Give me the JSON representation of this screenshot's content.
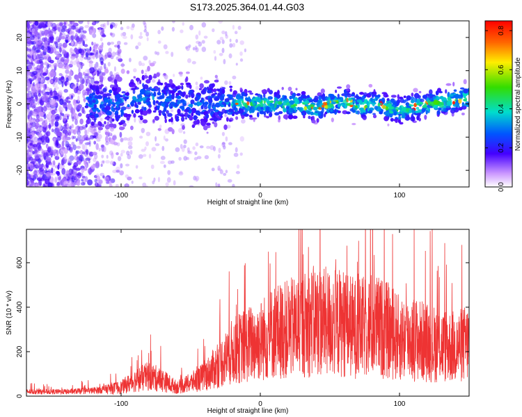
{
  "title": "S173.2025.364.01.44.G03",
  "chart_data": [
    {
      "type": "heatmap",
      "xlabel": "Height of straight line (km)",
      "ylabel": "Frequency (Hz)",
      "xlim": [
        -168,
        150
      ],
      "ylim": [
        -25,
        25
      ],
      "xticks": [
        -100,
        0,
        100
      ],
      "yticks": [
        -20,
        -10,
        0,
        10,
        20
      ],
      "xtick_labels": [
        "-100",
        "0",
        "100"
      ],
      "ytick_labels": [
        "-20",
        "-10",
        "0",
        "10",
        "20"
      ],
      "colorbar": {
        "label": "Normalized spectral amplitude",
        "range": [
          0.0,
          0.85
        ],
        "ticks": [
          0.0,
          0.2,
          0.4,
          0.6,
          0.8
        ],
        "tick_labels": [
          "0.0",
          "0.2",
          "0.4",
          "0.6",
          "0.8"
        ]
      },
      "ridge": {
        "x": [
          -120,
          -100,
          -80,
          -60,
          -40,
          -20,
          0,
          20,
          40,
          60,
          70,
          80,
          100,
          120,
          150
        ],
        "freq": [
          0,
          0,
          2,
          0,
          0,
          0,
          0,
          0,
          -1,
          1,
          -1,
          0,
          -2,
          0,
          2
        ]
      }
    },
    {
      "type": "line",
      "xlabel": "Height of straight line (km)",
      "ylabel": "SNR (10 * v/v)",
      "xlim": [
        -168,
        150
      ],
      "ylim": [
        0,
        750
      ],
      "xticks": [
        -100,
        0,
        100
      ],
      "yticks": [
        0,
        200,
        400,
        600
      ],
      "xtick_labels": [
        "-100",
        "0",
        "100"
      ],
      "ytick_labels": [
        "0",
        "200",
        "400",
        "600"
      ],
      "color": "#ee3333",
      "series": [
        {
          "x": [
            -168,
            -140,
            -120,
            -100,
            -90,
            -80,
            -70,
            -60,
            -50,
            -40,
            -30,
            -20,
            -10,
            0,
            10,
            20,
            30,
            40,
            50,
            60,
            70,
            80,
            90,
            100,
            110,
            120,
            130,
            140,
            150
          ],
          "y": [
            20,
            20,
            25,
            40,
            70,
            90,
            70,
            40,
            60,
            90,
            140,
            200,
            230,
            250,
            290,
            300,
            320,
            340,
            330,
            330,
            300,
            320,
            300,
            260,
            260,
            240,
            230,
            220,
            240
          ]
        }
      ]
    }
  ]
}
